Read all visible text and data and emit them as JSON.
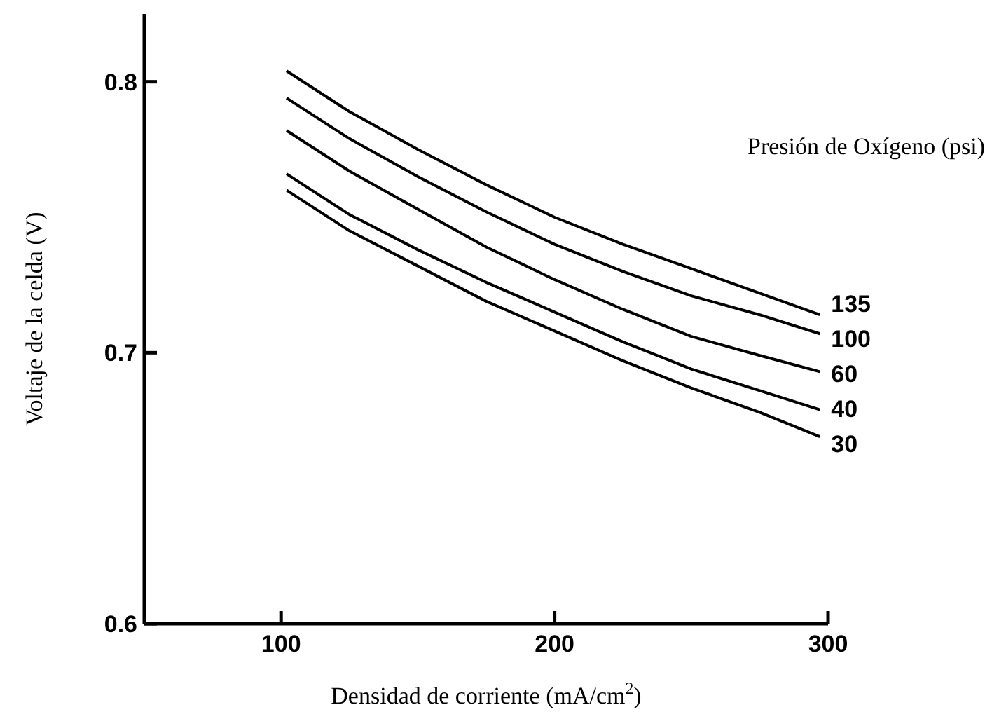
{
  "chart_data": {
    "type": "line",
    "xlabel": "Densidad de corriente (mA/cm$^{2}$)",
    "ylabel": "Voltaje de la celda (V)",
    "legend_title": "Presión de Oxígeno (psi)",
    "x": [
      102,
      125,
      150,
      175,
      200,
      225,
      250,
      275,
      297
    ],
    "series": [
      {
        "name": "135",
        "color": "#000000",
        "values": [
          0.804,
          0.789,
          0.775,
          0.762,
          0.75,
          0.74,
          0.731,
          0.722,
          0.714
        ]
      },
      {
        "name": "100",
        "color": "#000000",
        "values": [
          0.794,
          0.779,
          0.765,
          0.752,
          0.74,
          0.73,
          0.721,
          0.714,
          0.707
        ]
      },
      {
        "name": "60",
        "color": "#000000",
        "values": [
          0.782,
          0.767,
          0.753,
          0.739,
          0.727,
          0.716,
          0.706,
          0.699,
          0.693
        ]
      },
      {
        "name": "40",
        "color": "#000000",
        "values": [
          0.766,
          0.751,
          0.738,
          0.726,
          0.715,
          0.704,
          0.694,
          0.686,
          0.679
        ]
      },
      {
        "name": "30",
        "color": "#000000",
        "values": [
          0.76,
          0.745,
          0.732,
          0.719,
          0.708,
          0.697,
          0.687,
          0.678,
          0.669
        ]
      }
    ],
    "xlim": [
      50,
      300
    ],
    "ylim": [
      0.6,
      0.825
    ],
    "xticks": [
      100,
      200,
      300
    ],
    "yticks": [
      0.6,
      0.7,
      0.8
    ],
    "grid": false,
    "legend": "right",
    "marker": "none",
    "line_style": "solid"
  }
}
